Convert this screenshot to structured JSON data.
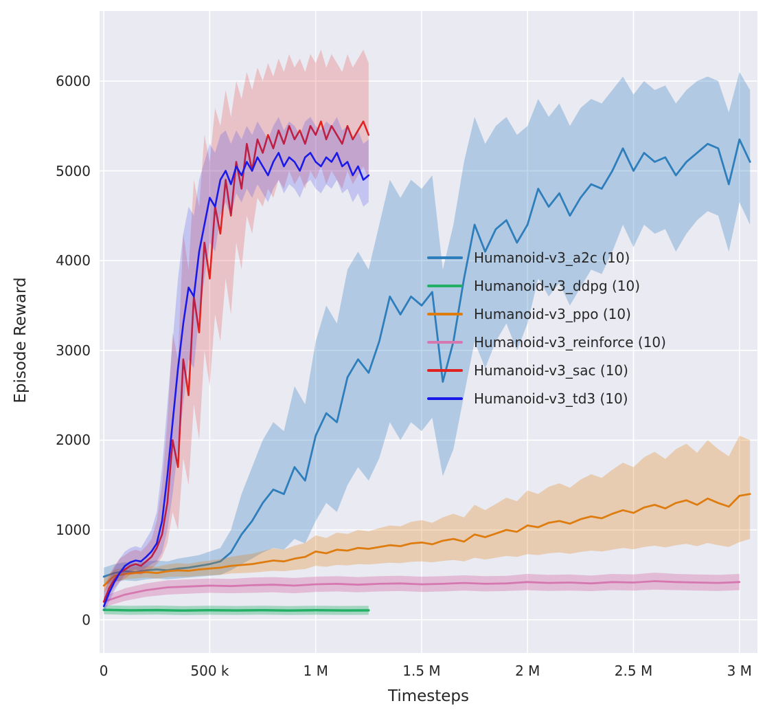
{
  "figure": {
    "background": "#ffffff",
    "axes_background": "#eaeaf2",
    "grid_color": "#ffffff",
    "text_color": "#262626"
  },
  "chart_data": {
    "type": "line",
    "title": "",
    "xlabel": "Timesteps",
    "ylabel": "Episode Reward",
    "xlim": [
      -20000,
      3085000
    ],
    "ylim": [
      -370,
      6780
    ],
    "grid": true,
    "legend_position": "center-right-inside",
    "x_ticks": [
      {
        "v": 0,
        "label": "0"
      },
      {
        "v": 500000,
        "label": "500 k"
      },
      {
        "v": 1000000,
        "label": "1 M"
      },
      {
        "v": 1500000,
        "label": "1.5 M"
      },
      {
        "v": 2000000,
        "label": "2 M"
      },
      {
        "v": 2500000,
        "label": "2.5 M"
      },
      {
        "v": 3000000,
        "label": "3 M"
      }
    ],
    "y_ticks": [
      {
        "v": 0,
        "label": "0"
      },
      {
        "v": 1000,
        "label": "1000"
      },
      {
        "v": 2000,
        "label": "2000"
      },
      {
        "v": 3000,
        "label": "3000"
      },
      {
        "v": 4000,
        "label": "4000"
      },
      {
        "v": 5000,
        "label": "5000"
      },
      {
        "v": 6000,
        "label": "6000"
      }
    ],
    "series": [
      {
        "name": "a2c",
        "label": "Humanoid-v3_a2c (10)",
        "color": "#2e7ebc",
        "band_alpha": 0.3,
        "line_width": 2.8,
        "x0": 0,
        "dx": 50000,
        "y": [
          480,
          520,
          540,
          530,
          550,
          560,
          550,
          570,
          580,
          600,
          620,
          650,
          750,
          950,
          1100,
          1300,
          1450,
          1400,
          1700,
          1550,
          2050,
          2300,
          2200,
          2700,
          2900,
          2750,
          3100,
          3600,
          3400,
          3600,
          3500,
          3650,
          2650,
          3100,
          3800,
          4400,
          4100,
          4350,
          4450,
          4200,
          4400,
          4800,
          4600,
          4750,
          4500,
          4700,
          4850,
          4800,
          5000,
          5250,
          5000,
          5200,
          5100,
          5150,
          4950,
          5100,
          5200,
          5300,
          5250,
          4850,
          5350,
          5100
        ],
        "lo": [
          380,
          420,
          440,
          430,
          450,
          460,
          450,
          460,
          470,
          480,
          490,
          500,
          550,
          620,
          680,
          750,
          800,
          780,
          900,
          850,
          1100,
          1300,
          1200,
          1500,
          1700,
          1550,
          1800,
          2200,
          2000,
          2200,
          2100,
          2250,
          1600,
          1900,
          2500,
          3100,
          2800,
          3100,
          3300,
          3000,
          3300,
          3800,
          3600,
          3750,
          3500,
          3700,
          3900,
          3850,
          4100,
          4400,
          4150,
          4400,
          4300,
          4350,
          4100,
          4300,
          4450,
          4550,
          4500,
          4100,
          4650,
          4400
        ],
        "hi": [
          580,
          620,
          640,
          630,
          650,
          660,
          650,
          680,
          700,
          720,
          760,
          800,
          1000,
          1400,
          1700,
          2000,
          2200,
          2100,
          2600,
          2400,
          3100,
          3500,
          3300,
          3900,
          4100,
          3900,
          4400,
          4900,
          4700,
          4900,
          4800,
          4950,
          3900,
          4400,
          5100,
          5600,
          5300,
          5500,
          5600,
          5400,
          5500,
          5800,
          5600,
          5750,
          5500,
          5700,
          5800,
          5750,
          5900,
          6050,
          5850,
          6000,
          5900,
          5950,
          5750,
          5900,
          6000,
          6050,
          6000,
          5650,
          6100,
          5900
        ]
      },
      {
        "name": "ddpg",
        "label": "Humanoid-v3_ddpg (10)",
        "color": "#21b066",
        "band_alpha": 0.35,
        "line_width": 3.5,
        "x0": 0,
        "dx": 125000,
        "y": [
          110,
          105,
          108,
          102,
          106,
          104,
          107,
          103,
          106,
          104,
          105
        ],
        "lo": [
          60,
          55,
          58,
          52,
          56,
          54,
          57,
          53,
          56,
          54,
          55
        ],
        "hi": [
          160,
          155,
          158,
          152,
          156,
          154,
          157,
          153,
          156,
          154,
          155
        ]
      },
      {
        "name": "ppo",
        "label": "Humanoid-v3_ppo (10)",
        "color": "#df7c10",
        "band_alpha": 0.28,
        "line_width": 2.8,
        "x0": 0,
        "dx": 50000,
        "y": [
          380,
          490,
          510,
          520,
          530,
          520,
          540,
          550,
          545,
          560,
          570,
          580,
          600,
          610,
          620,
          640,
          660,
          650,
          680,
          700,
          760,
          740,
          780,
          770,
          800,
          790,
          810,
          830,
          820,
          850,
          860,
          840,
          880,
          900,
          870,
          950,
          920,
          960,
          1000,
          980,
          1050,
          1030,
          1080,
          1100,
          1070,
          1120,
          1150,
          1130,
          1180,
          1220,
          1190,
          1250,
          1280,
          1240,
          1300,
          1330,
          1280,
          1350,
          1300,
          1260,
          1380,
          1400
        ],
        "lo": [
          300,
          430,
          450,
          460,
          470,
          460,
          475,
          480,
          478,
          490,
          495,
          500,
          515,
          520,
          525,
          535,
          545,
          540,
          555,
          565,
          600,
          590,
          610,
          605,
          620,
          615,
          625,
          635,
          630,
          645,
          650,
          640,
          655,
          665,
          650,
          690,
          670,
          690,
          710,
          700,
          730,
          720,
          740,
          750,
          735,
          755,
          770,
          760,
          780,
          800,
          785,
          810,
          825,
          805,
          830,
          845,
          820,
          855,
          830,
          810,
          865,
          900
        ],
        "hi": [
          460,
          560,
          580,
          590,
          600,
          590,
          615,
          630,
          622,
          645,
          660,
          675,
          700,
          720,
          735,
          765,
          795,
          780,
          825,
          855,
          940,
          910,
          970,
          955,
          1000,
          985,
          1020,
          1050,
          1040,
          1090,
          1110,
          1080,
          1140,
          1180,
          1140,
          1280,
          1220,
          1290,
          1360,
          1320,
          1440,
          1400,
          1480,
          1520,
          1470,
          1560,
          1620,
          1580,
          1670,
          1750,
          1700,
          1810,
          1870,
          1790,
          1900,
          1960,
          1860,
          2000,
          1900,
          1820,
          2050,
          2000
        ]
      },
      {
        "name": "reinforce",
        "label": "Humanoid-v3_reinforce (10)",
        "color": "#d678b0",
        "band_alpha": 0.4,
        "line_width": 2.8,
        "x0": 0,
        "dx": 100000,
        "y": [
          200,
          280,
          330,
          360,
          370,
          380,
          375,
          385,
          390,
          380,
          395,
          400,
          390,
          400,
          405,
          395,
          400,
          410,
          400,
          405,
          420,
          410,
          415,
          405,
          420,
          415,
          430,
          420,
          415,
          410,
          420
        ],
        "lo": [
          140,
          210,
          255,
          280,
          290,
          300,
          295,
          300,
          305,
          295,
          310,
          315,
          305,
          315,
          320,
          310,
          315,
          325,
          315,
          320,
          330,
          320,
          325,
          318,
          330,
          325,
          335,
          330,
          325,
          320,
          330
        ],
        "hi": [
          260,
          350,
          405,
          440,
          450,
          460,
          455,
          470,
          475,
          465,
          480,
          485,
          475,
          485,
          490,
          480,
          485,
          495,
          485,
          490,
          510,
          500,
          505,
          492,
          510,
          505,
          525,
          510,
          505,
          500,
          510
        ]
      },
      {
        "name": "sac",
        "label": "Humanoid-v3_sac (10)",
        "color": "#e02220",
        "band_alpha": 0.2,
        "line_width": 2.6,
        "x0": 0,
        "dx": 25000,
        "y": [
          200,
          350,
          450,
          520,
          560,
          600,
          620,
          600,
          650,
          700,
          800,
          950,
          1300,
          2000,
          1700,
          2900,
          2500,
          3600,
          3200,
          4200,
          3800,
          4600,
          4300,
          4900,
          4500,
          5100,
          4800,
          5300,
          5000,
          5350,
          5200,
          5400,
          5250,
          5450,
          5300,
          5500,
          5350,
          5450,
          5300,
          5500,
          5400,
          5550,
          5350,
          5500,
          5400,
          5300,
          5500,
          5350,
          5450,
          5550,
          5400
        ],
        "lo": [
          120,
          250,
          350,
          420,
          460,
          500,
          520,
          500,
          540,
          570,
          620,
          700,
          850,
          1200,
          1000,
          1800,
          1500,
          2400,
          2000,
          3000,
          2600,
          3400,
          3100,
          3800,
          3400,
          4200,
          3900,
          4500,
          4300,
          4700,
          4600,
          4800,
          4700,
          4900,
          4800,
          5000,
          4850,
          4950,
          4800,
          5000,
          4900,
          5050,
          4850,
          5000,
          4900,
          4800,
          5000,
          4850,
          4950,
          5050,
          4900
        ],
        "hi": [
          350,
          500,
          600,
          680,
          720,
          760,
          780,
          760,
          820,
          900,
          1100,
          1500,
          2200,
          3200,
          2900,
          4300,
          3900,
          4900,
          4600,
          5400,
          5100,
          5700,
          5500,
          5900,
          5600,
          6000,
          5800,
          6100,
          5900,
          6150,
          6000,
          6200,
          6050,
          6250,
          6100,
          6300,
          6150,
          6250,
          6100,
          6300,
          6200,
          6350,
          6150,
          6300,
          6200,
          6100,
          6300,
          6150,
          6250,
          6350,
          6200
        ]
      },
      {
        "name": "td3",
        "label": "Humanoid-v3_td3 (10)",
        "color": "#1a1ae8",
        "band_alpha": 0.18,
        "line_width": 2.6,
        "x0": 0,
        "dx": 25000,
        "y": [
          150,
          300,
          420,
          520,
          600,
          640,
          660,
          650,
          700,
          760,
          850,
          1100,
          1600,
          2200,
          2800,
          3300,
          3700,
          3600,
          4100,
          4400,
          4700,
          4600,
          4900,
          5000,
          4850,
          5050,
          4950,
          5100,
          5000,
          5150,
          5050,
          4950,
          5100,
          5200,
          5050,
          5150,
          5100,
          5000,
          5150,
          5200,
          5100,
          5050,
          5150,
          5100,
          5200,
          5050,
          5100,
          4950,
          5050,
          4900,
          4950
        ],
        "lo": [
          80,
          200,
          320,
          420,
          500,
          540,
          560,
          540,
          580,
          620,
          650,
          750,
          1000,
          1400,
          1900,
          2400,
          2900,
          2800,
          3400,
          3800,
          4200,
          4100,
          4500,
          4650,
          4500,
          4750,
          4650,
          4800,
          4700,
          4850,
          4750,
          4650,
          4800,
          4900,
          4750,
          4850,
          4800,
          4700,
          4850,
          4900,
          4800,
          4750,
          4850,
          4800,
          4900,
          4750,
          4800,
          4650,
          4750,
          4600,
          4650
        ],
        "hi": [
          300,
          450,
          580,
          680,
          760,
          800,
          820,
          800,
          900,
          1000,
          1200,
          1700,
          2400,
          3100,
          3800,
          4300,
          4600,
          4500,
          4900,
          5100,
          5300,
          5200,
          5400,
          5450,
          5300,
          5450,
          5350,
          5500,
          5400,
          5550,
          5450,
          5350,
          5500,
          5600,
          5450,
          5550,
          5500,
          5400,
          5550,
          5600,
          5500,
          5450,
          5550,
          5500,
          5600,
          5450,
          5500,
          5350,
          5450,
          5300,
          5350
        ]
      }
    ]
  }
}
